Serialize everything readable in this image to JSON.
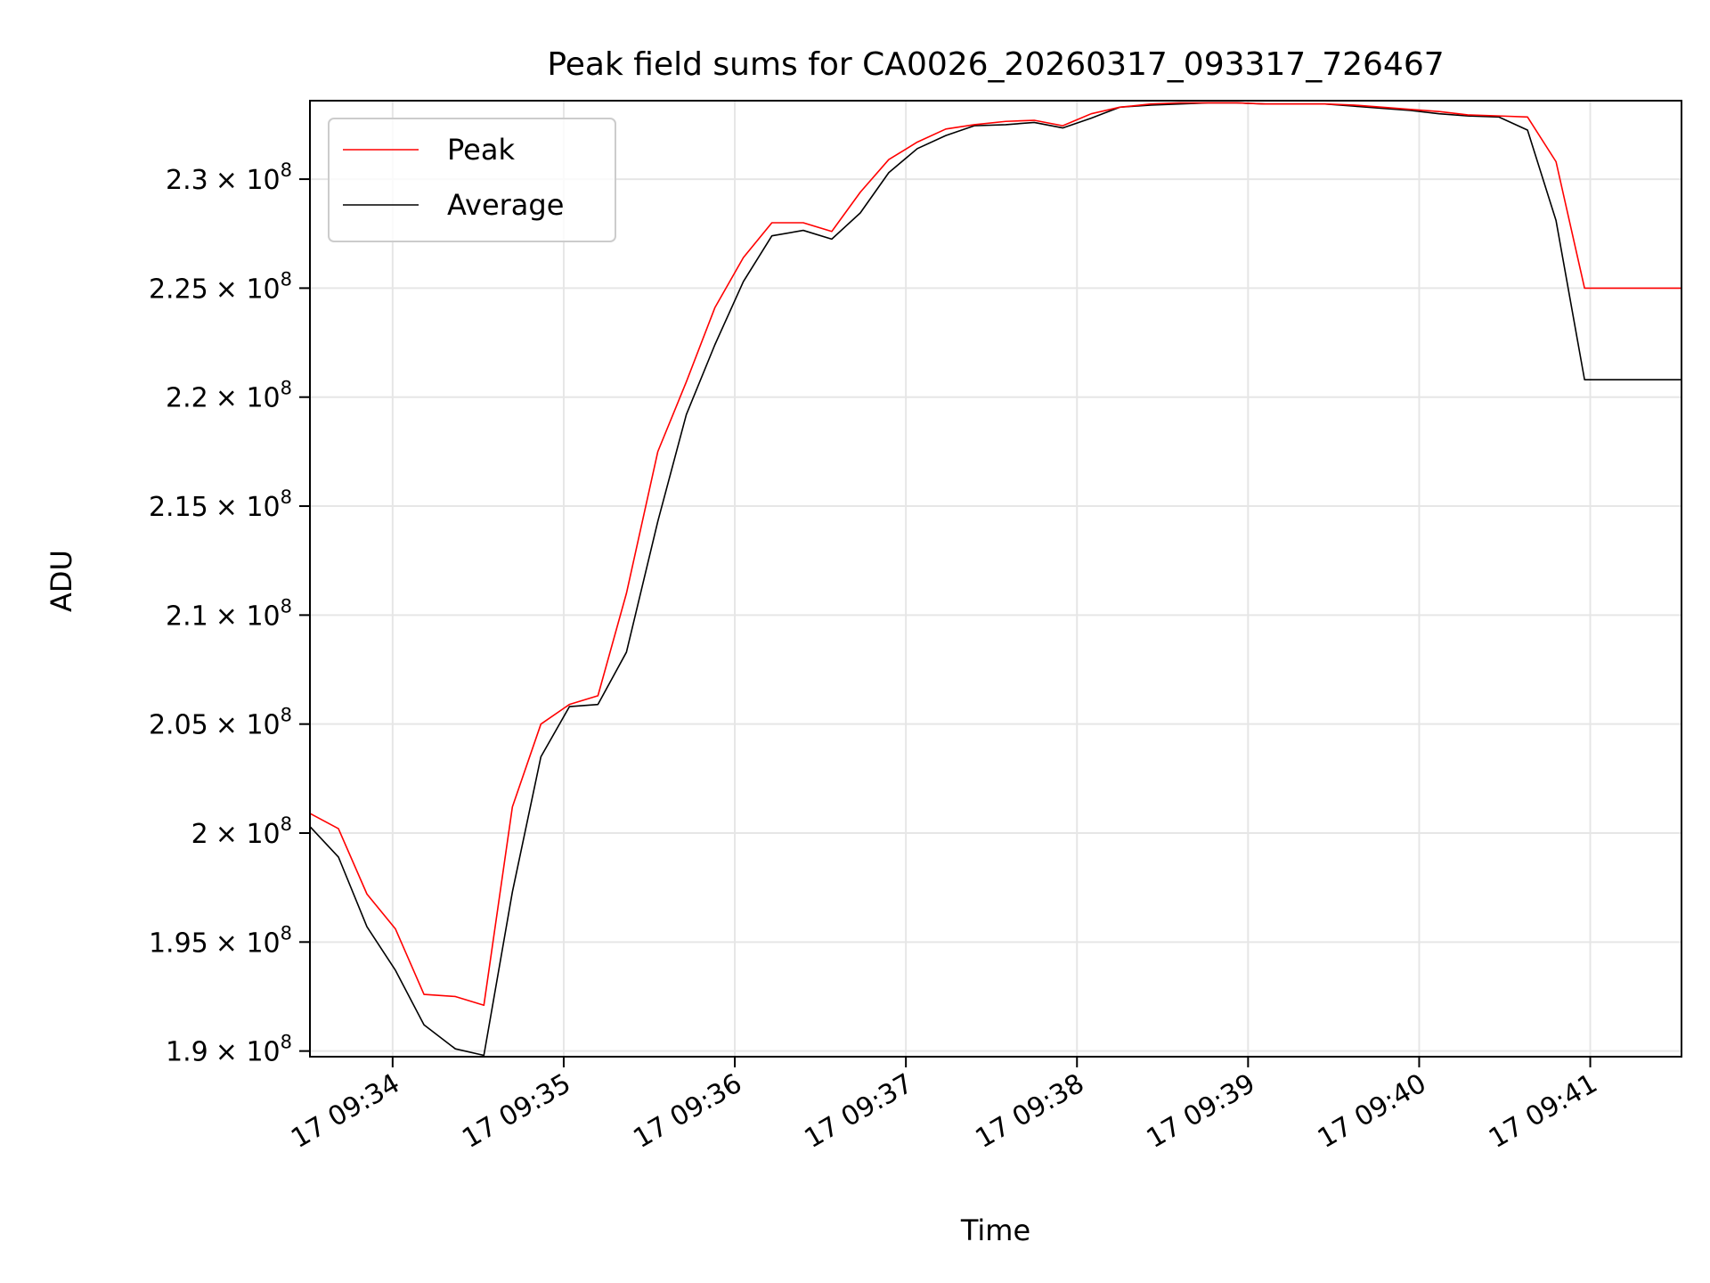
{
  "chart_data": {
    "type": "line",
    "title": "Peak field sums for CA0026_20260317_093317_726467",
    "xlabel": "Time",
    "ylabel": "ADU",
    "grid": true,
    "legend_position": "top-left",
    "xlim": [
      "09:33:31",
      "09:41:32"
    ],
    "ylim": [
      189740000,
      233600000
    ],
    "x_ticks": [
      {
        "value": "09:34:00",
        "label": "17 09:34"
      },
      {
        "value": "09:35:00",
        "label": "17 09:35"
      },
      {
        "value": "09:36:00",
        "label": "17 09:36"
      },
      {
        "value": "09:37:00",
        "label": "17 09:37"
      },
      {
        "value": "09:38:00",
        "label": "17 09:38"
      },
      {
        "value": "09:39:00",
        "label": "17 09:39"
      },
      {
        "value": "09:40:00",
        "label": "17 09:40"
      },
      {
        "value": "09:41:00",
        "label": "17 09:41"
      }
    ],
    "y_ticks": [
      {
        "value": 190000000,
        "mantissa": "1.9"
      },
      {
        "value": 195000000,
        "mantissa": "1.95"
      },
      {
        "value": 200000000,
        "mantissa": "2"
      },
      {
        "value": 205000000,
        "mantissa": "2.05"
      },
      {
        "value": 210000000,
        "mantissa": "2.1"
      },
      {
        "value": 215000000,
        "mantissa": "2.15"
      },
      {
        "value": 220000000,
        "mantissa": "2.2"
      },
      {
        "value": 225000000,
        "mantissa": "2.25"
      },
      {
        "value": 230000000,
        "mantissa": "2.3"
      }
    ],
    "y_tick_suffix": "× 10",
    "y_tick_exponent": "8",
    "series": [
      {
        "name": "Peak",
        "color": "#ff0000",
        "points": [
          [
            "09:33:31",
            200900000
          ],
          [
            "09:33:41",
            200200000
          ],
          [
            "09:33:51",
            197200000
          ],
          [
            "09:34:01",
            195600000
          ],
          [
            "09:34:11",
            192600000
          ],
          [
            "09:34:22",
            192500000
          ],
          [
            "09:34:32",
            192100000
          ],
          [
            "09:34:42",
            201200000
          ],
          [
            "09:34:52",
            205000000
          ],
          [
            "09:35:02",
            205900000
          ],
          [
            "09:35:12",
            206300000
          ],
          [
            "09:35:22",
            211000000
          ],
          [
            "09:35:33",
            217500000
          ],
          [
            "09:35:43",
            220700000
          ],
          [
            "09:35:53",
            224100000
          ],
          [
            "09:36:03",
            226400000
          ],
          [
            "09:36:13",
            228000000
          ],
          [
            "09:36:24",
            228000000
          ],
          [
            "09:36:34",
            227600000
          ],
          [
            "09:36:44",
            229400000
          ],
          [
            "09:36:54",
            230900000
          ],
          [
            "09:37:04",
            231700000
          ],
          [
            "09:37:14",
            232300000
          ],
          [
            "09:37:24",
            232500000
          ],
          [
            "09:37:35",
            232650000
          ],
          [
            "09:37:45",
            232700000
          ],
          [
            "09:37:55",
            232450000
          ],
          [
            "09:38:05",
            233000000
          ],
          [
            "09:38:15",
            233300000
          ],
          [
            "09:38:26",
            233450000
          ],
          [
            "09:38:36",
            233500000
          ],
          [
            "09:38:46",
            233500000
          ],
          [
            "09:38:56",
            233500000
          ],
          [
            "09:39:06",
            233450000
          ],
          [
            "09:39:17",
            233450000
          ],
          [
            "09:39:27",
            233450000
          ],
          [
            "09:39:37",
            233400000
          ],
          [
            "09:39:47",
            233300000
          ],
          [
            "09:39:57",
            233200000
          ],
          [
            "09:40:07",
            233100000
          ],
          [
            "09:40:17",
            232950000
          ],
          [
            "09:40:28",
            232900000
          ],
          [
            "09:40:38",
            232850000
          ],
          [
            "09:40:48",
            230800000
          ],
          [
            "09:40:58",
            225000000
          ],
          [
            "09:41:32",
            225000000
          ]
        ]
      },
      {
        "name": "Average",
        "color": "#000000",
        "points": [
          [
            "09:33:31",
            200300000
          ],
          [
            "09:33:41",
            198900000
          ],
          [
            "09:33:51",
            195700000
          ],
          [
            "09:34:01",
            193700000
          ],
          [
            "09:34:11",
            191200000
          ],
          [
            "09:34:22",
            190100000
          ],
          [
            "09:34:32",
            189800000
          ],
          [
            "09:34:42",
            197300000
          ],
          [
            "09:34:52",
            203500000
          ],
          [
            "09:35:02",
            205800000
          ],
          [
            "09:35:12",
            205900000
          ],
          [
            "09:35:22",
            208300000
          ],
          [
            "09:35:33",
            214300000
          ],
          [
            "09:35:43",
            219200000
          ],
          [
            "09:35:53",
            222400000
          ],
          [
            "09:36:03",
            225300000
          ],
          [
            "09:36:13",
            227400000
          ],
          [
            "09:36:24",
            227650000
          ],
          [
            "09:36:34",
            227250000
          ],
          [
            "09:36:44",
            228450000
          ],
          [
            "09:36:54",
            230300000
          ],
          [
            "09:37:04",
            231400000
          ],
          [
            "09:37:14",
            232000000
          ],
          [
            "09:37:24",
            232450000
          ],
          [
            "09:37:35",
            232500000
          ],
          [
            "09:37:45",
            232600000
          ],
          [
            "09:37:55",
            232350000
          ],
          [
            "09:38:05",
            232800000
          ],
          [
            "09:38:15",
            233300000
          ],
          [
            "09:38:26",
            233400000
          ],
          [
            "09:38:36",
            233450000
          ],
          [
            "09:38:46",
            233500000
          ],
          [
            "09:38:56",
            233500000
          ],
          [
            "09:39:06",
            233450000
          ],
          [
            "09:39:17",
            233450000
          ],
          [
            "09:39:27",
            233450000
          ],
          [
            "09:39:37",
            233350000
          ],
          [
            "09:39:47",
            233250000
          ],
          [
            "09:39:57",
            233150000
          ],
          [
            "09:40:07",
            233000000
          ],
          [
            "09:40:17",
            232900000
          ],
          [
            "09:40:28",
            232850000
          ],
          [
            "09:40:38",
            232250000
          ],
          [
            "09:40:48",
            228100000
          ],
          [
            "09:40:58",
            220800000
          ],
          [
            "09:41:32",
            220800000
          ]
        ]
      }
    ]
  }
}
